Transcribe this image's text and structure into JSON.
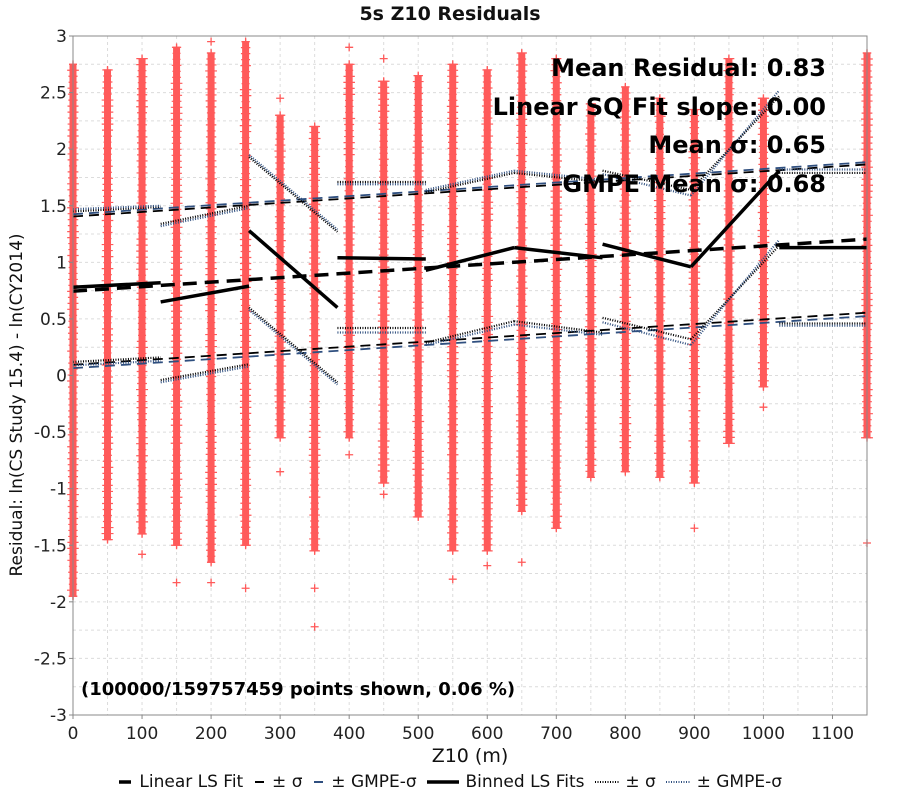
{
  "chart_data": {
    "type": "scatter",
    "title": "5s Z10 Residuals",
    "xlabel": "Z10 (m)",
    "ylabel": "Residual: ln(CS Study 15.4) - ln(CY2014)",
    "xlim": [
      0,
      1150
    ],
    "ylim": [
      -3,
      3
    ],
    "x_ticks": [
      "0",
      "100",
      "200",
      "300",
      "400",
      "500",
      "600",
      "700",
      "800",
      "900",
      "1000",
      "1100"
    ],
    "y_ticks": [
      "-3",
      "-2.5",
      "-2",
      "-1.5",
      "-1",
      "-0.5",
      "0",
      "0.5",
      "1",
      "1.5",
      "2",
      "2.5",
      "3"
    ],
    "grid": true,
    "annotations": {
      "mean_residual": "Mean Residual: 0.83",
      "slope": "Linear SQ Fit slope: 0.00",
      "mean_sigma": "Mean σ: 0.65",
      "gmpe_mean_sigma": "GMPE Mean σ: 0.68",
      "points_shown": "(100000/159757459 points shown, 0.06 %)"
    },
    "scatter_columns": [
      {
        "x": 0,
        "ymin": -1.95,
        "ymax": 2.75,
        "outliers": [
          -1.95
        ]
      },
      {
        "x": 50,
        "ymin": -1.45,
        "ymax": 2.7,
        "outliers": []
      },
      {
        "x": 100,
        "ymin": -1.4,
        "ymax": 2.8,
        "outliers": [
          -1.58
        ]
      },
      {
        "x": 150,
        "ymin": -1.5,
        "ymax": 2.9,
        "outliers": [
          -1.83
        ]
      },
      {
        "x": 200,
        "ymin": -1.65,
        "ymax": 2.85,
        "outliers": [
          -1.83,
          2.95
        ]
      },
      {
        "x": 250,
        "ymin": -1.5,
        "ymax": 2.95,
        "outliers": [
          -1.88
        ]
      },
      {
        "x": 300,
        "ymin": -0.55,
        "ymax": 2.3,
        "outliers": [
          -0.85,
          2.45
        ]
      },
      {
        "x": 350,
        "ymin": -1.55,
        "ymax": 2.2,
        "outliers": [
          -2.22,
          -1.88
        ]
      },
      {
        "x": 400,
        "ymin": -0.55,
        "ymax": 2.75,
        "outliers": [
          -0.7,
          2.9
        ]
      },
      {
        "x": 450,
        "ymin": -0.95,
        "ymax": 2.6,
        "outliers": [
          -1.05,
          2.8
        ]
      },
      {
        "x": 500,
        "ymin": -1.25,
        "ymax": 2.65,
        "outliers": []
      },
      {
        "x": 550,
        "ymin": -1.55,
        "ymax": 2.75,
        "outliers": [
          -1.8
        ]
      },
      {
        "x": 600,
        "ymin": -1.55,
        "ymax": 2.7,
        "outliers": [
          -1.68
        ]
      },
      {
        "x": 650,
        "ymin": -1.2,
        "ymax": 2.85,
        "outliers": [
          -1.65
        ]
      },
      {
        "x": 700,
        "ymin": -1.35,
        "ymax": 2.8,
        "outliers": []
      },
      {
        "x": 750,
        "ymin": -0.9,
        "ymax": 2.4,
        "outliers": []
      },
      {
        "x": 800,
        "ymin": -0.85,
        "ymax": 2.55,
        "outliers": []
      },
      {
        "x": 850,
        "ymin": -0.9,
        "ymax": 2.45,
        "outliers": []
      },
      {
        "x": 900,
        "ymin": -0.95,
        "ymax": 2.35,
        "outliers": [
          -1.35
        ]
      },
      {
        "x": 950,
        "ymin": -0.6,
        "ymax": 2.8,
        "outliers": []
      },
      {
        "x": 1000,
        "ymin": -0.1,
        "ymax": 2.45,
        "outliers": [
          -0.28
        ]
      },
      {
        "x": 1150,
        "ymin": -0.55,
        "ymax": 2.85,
        "outliers": [
          -1.48
        ]
      }
    ],
    "series": [
      {
        "name": "Linear LS Fit",
        "style": "thick-dash",
        "color": "#000000",
        "lines": [
          [
            [
              0,
              0.745
            ],
            [
              1150,
              1.205
            ]
          ]
        ]
      },
      {
        "name": "± σ",
        "style": "dash",
        "color": "#000000",
        "lines": [
          [
            [
              0,
              1.405
            ],
            [
              1150,
              1.865
            ]
          ],
          [
            [
              0,
              0.095
            ],
            [
              1150,
              0.555
            ]
          ]
        ]
      },
      {
        "name": "± GMPE-σ",
        "style": "dash",
        "color": "#2f4f7f",
        "lines": [
          [
            [
              0,
              1.425
            ],
            [
              1150,
              1.885
            ]
          ],
          [
            [
              0,
              0.065
            ],
            [
              1150,
              0.525
            ]
          ]
        ]
      },
      {
        "name": "Binned LS Fits",
        "style": "solid-thick",
        "color": "#000000",
        "lines": [
          [
            [
              0,
              0.78
            ],
            [
              127,
              0.82
            ]
          ],
          [
            [
              127,
              0.65
            ],
            [
              255,
              0.79
            ]
          ],
          [
            [
              255,
              1.28
            ],
            [
              383,
              0.6
            ]
          ],
          [
            [
              383,
              1.04
            ],
            [
              511,
              1.03
            ]
          ],
          [
            [
              511,
              0.93
            ],
            [
              639,
              1.13
            ]
          ],
          [
            [
              639,
              1.13
            ],
            [
              767,
              1.04
            ]
          ],
          [
            [
              767,
              1.16
            ],
            [
              895,
              0.96
            ]
          ],
          [
            [
              895,
              0.96
            ],
            [
              1023,
              1.81
            ]
          ],
          [
            [
              1023,
              1.13
            ],
            [
              1150,
              1.13
            ]
          ]
        ]
      },
      {
        "name": "± σ",
        "style": "dotted",
        "color": "#000000",
        "lines": [
          [
            [
              0,
              1.45
            ],
            [
              127,
              1.49
            ]
          ],
          [
            [
              0,
              0.12
            ],
            [
              127,
              0.16
            ]
          ],
          [
            [
              127,
              1.34
            ],
            [
              255,
              1.5
            ]
          ],
          [
            [
              127,
              -0.04
            ],
            [
              255,
              0.1
            ]
          ],
          [
            [
              255,
              1.93
            ],
            [
              383,
              1.27
            ]
          ],
          [
            [
              255,
              0.6
            ],
            [
              383,
              -0.06
            ]
          ],
          [
            [
              383,
              1.71
            ],
            [
              511,
              1.71
            ]
          ],
          [
            [
              383,
              0.42
            ],
            [
              511,
              0.42
            ]
          ],
          [
            [
              511,
              1.62
            ],
            [
              639,
              1.79
            ]
          ],
          [
            [
              511,
              0.29
            ],
            [
              639,
              0.48
            ]
          ],
          [
            [
              639,
              1.79
            ],
            [
              767,
              1.71
            ]
          ],
          [
            [
              639,
              0.48
            ],
            [
              767,
              0.38
            ]
          ],
          [
            [
              767,
              1.81
            ],
            [
              895,
              1.64
            ]
          ],
          [
            [
              767,
              0.51
            ],
            [
              895,
              0.32
            ]
          ],
          [
            [
              895,
              1.64
            ],
            [
              1023,
              2.47
            ]
          ],
          [
            [
              895,
              0.32
            ],
            [
              1023,
              1.15
            ]
          ],
          [
            [
              1023,
              1.79
            ],
            [
              1150,
              1.79
            ]
          ],
          [
            [
              1023,
              0.46
            ],
            [
              1150,
              0.46
            ]
          ]
        ]
      },
      {
        "name": "± GMPE-σ",
        "style": "dotted",
        "color": "#2f4f7f",
        "lines": [
          [
            [
              0,
              1.47
            ],
            [
              127,
              1.5
            ]
          ],
          [
            [
              0,
              0.09
            ],
            [
              127,
              0.13
            ]
          ],
          [
            [
              127,
              1.32
            ],
            [
              255,
              1.48
            ]
          ],
          [
            [
              127,
              -0.06
            ],
            [
              255,
              0.08
            ]
          ],
          [
            [
              255,
              1.95
            ],
            [
              383,
              1.29
            ]
          ],
          [
            [
              255,
              0.58
            ],
            [
              383,
              -0.08
            ]
          ],
          [
            [
              383,
              1.69
            ],
            [
              511,
              1.69
            ]
          ],
          [
            [
              383,
              0.38
            ],
            [
              511,
              0.38
            ]
          ],
          [
            [
              511,
              1.64
            ],
            [
              639,
              1.81
            ]
          ],
          [
            [
              511,
              0.27
            ],
            [
              639,
              0.45
            ]
          ],
          [
            [
              639,
              1.81
            ],
            [
              767,
              1.73
            ]
          ],
          [
            [
              639,
              0.45
            ],
            [
              767,
              0.36
            ]
          ],
          [
            [
              767,
              1.78
            ],
            [
              895,
              1.59
            ]
          ],
          [
            [
              767,
              0.47
            ],
            [
              895,
              0.27
            ]
          ],
          [
            [
              895,
              1.59
            ],
            [
              1023,
              2.52
            ]
          ],
          [
            [
              895,
              0.27
            ],
            [
              1023,
              1.2
            ]
          ],
          [
            [
              1023,
              1.82
            ],
            [
              1150,
              1.82
            ]
          ],
          [
            [
              1023,
              0.44
            ],
            [
              1150,
              0.44
            ]
          ]
        ]
      }
    ],
    "colors": {
      "points": "#ff5a5a",
      "gmpe": "#2f4f7f",
      "fit": "#000000",
      "grid": "#dcdcdc"
    }
  }
}
